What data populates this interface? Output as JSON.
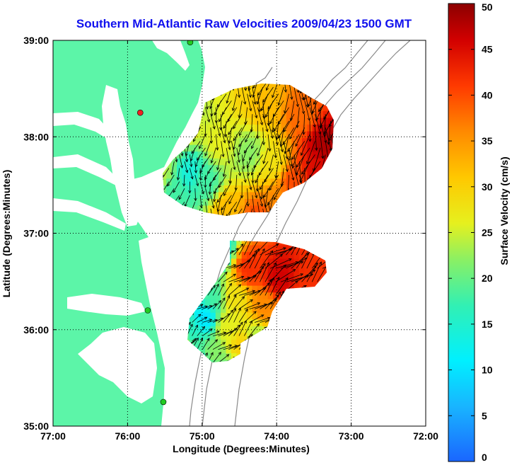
{
  "chart_data": {
    "type": "heatmap",
    "title": "Southern Mid-Atlantic Raw Velocities 2009/04/23 1500 GMT",
    "xlabel": "Longitude (Degrees:Minutes)",
    "ylabel": "Latitude (Degrees:Minutes)",
    "xlim": [
      -77,
      -72
    ],
    "ylim": [
      35,
      39
    ],
    "x_ticks": [
      {
        "value": -77,
        "label": "77:00"
      },
      {
        "value": -76,
        "label": "76:00"
      },
      {
        "value": -75,
        "label": "75:00"
      },
      {
        "value": -74,
        "label": "74:00"
      },
      {
        "value": -73,
        "label": "73:00"
      },
      {
        "value": -72,
        "label": "72:00"
      }
    ],
    "y_ticks": [
      {
        "value": 35,
        "label": "35:00"
      },
      {
        "value": 36,
        "label": "36:00"
      },
      {
        "value": 37,
        "label": "37:00"
      },
      {
        "value": 38,
        "label": "38:00"
      },
      {
        "value": 39,
        "label": "39:00"
      }
    ],
    "grid": true,
    "colorbar": {
      "label": "Surface Velocity (cm/s)",
      "range": [
        0,
        50
      ],
      "ticks": [
        {
          "value": 0,
          "label": "0"
        },
        {
          "value": 5,
          "label": "5"
        },
        {
          "value": 10,
          "label": "10"
        },
        {
          "value": 15,
          "label": "15"
        },
        {
          "value": 20,
          "label": "20"
        },
        {
          "value": 25,
          "label": "25"
        },
        {
          "value": 30,
          "label": "30"
        },
        {
          "value": 35,
          "label": "35"
        },
        {
          "value": 40,
          "label": "40"
        },
        {
          "value": 45,
          "label": "45"
        },
        {
          "value": 50,
          "label": "50"
        }
      ]
    },
    "regions": [
      {
        "field": [
          [
            -75.5,
            37.9,
            22
          ],
          [
            -75.3,
            38.1,
            28
          ],
          [
            -75.1,
            38.3,
            24
          ],
          [
            -74.8,
            38.5,
            26
          ],
          [
            -74.5,
            38.5,
            30
          ],
          [
            -74.2,
            38.3,
            32
          ],
          [
            -73.7,
            38.2,
            38
          ],
          [
            -73.4,
            37.9,
            48
          ],
          [
            -73.5,
            37.6,
            45
          ],
          [
            -74.0,
            37.3,
            36
          ],
          [
            -74.3,
            37.1,
            40
          ],
          [
            -74.7,
            37.2,
            32
          ],
          [
            -75.0,
            37.5,
            18
          ],
          [
            -75.2,
            37.6,
            14
          ],
          [
            -75.4,
            37.4,
            18
          ],
          [
            -75.6,
            37.6,
            24
          ],
          [
            -74.4,
            37.8,
            22
          ],
          [
            -74.8,
            37.9,
            26
          ],
          [
            -74.1,
            37.7,
            28
          ],
          [
            -73.8,
            37.5,
            40
          ]
        ],
        "vector_dir_deg": 260
      },
      {
        "field": [
          [
            -75.1,
            36.8,
            18
          ],
          [
            -74.8,
            36.8,
            14
          ],
          [
            -74.4,
            36.6,
            42
          ],
          [
            -74.0,
            36.5,
            46
          ],
          [
            -73.6,
            36.4,
            42
          ],
          [
            -74.2,
            36.2,
            36
          ],
          [
            -74.6,
            36.3,
            28
          ],
          [
            -74.9,
            36.3,
            18
          ],
          [
            -75.0,
            36.1,
            10
          ],
          [
            -75.2,
            36.0,
            16
          ],
          [
            -75.4,
            35.9,
            30
          ],
          [
            -74.7,
            36.0,
            26
          ],
          [
            -74.9,
            35.7,
            22
          ],
          [
            -75.0,
            35.6,
            14
          ],
          [
            -74.6,
            35.5,
            20
          ],
          [
            -74.5,
            35.8,
            30
          ],
          [
            -75.5,
            36.2,
            28
          ],
          [
            -74.3,
            35.9,
            24
          ]
        ],
        "vector_dir_deg": 40
      }
    ]
  },
  "colors": {
    "land": "#5cf5a8",
    "water": "#ffffff",
    "title": "#1010ee",
    "contour": "#8a8a8a",
    "vectors": "#000000",
    "stations": "#22cc22",
    "station_alt": "#ee2222"
  },
  "map_features": {
    "stations": [
      {
        "lon": -75.16,
        "lat": 38.98,
        "color": "green"
      },
      {
        "lon": -75.83,
        "lat": 38.25,
        "color": "red"
      },
      {
        "lon": -75.73,
        "lat": 36.2,
        "color": "green"
      },
      {
        "lon": -75.52,
        "lat": 35.25,
        "color": "green"
      }
    ]
  }
}
